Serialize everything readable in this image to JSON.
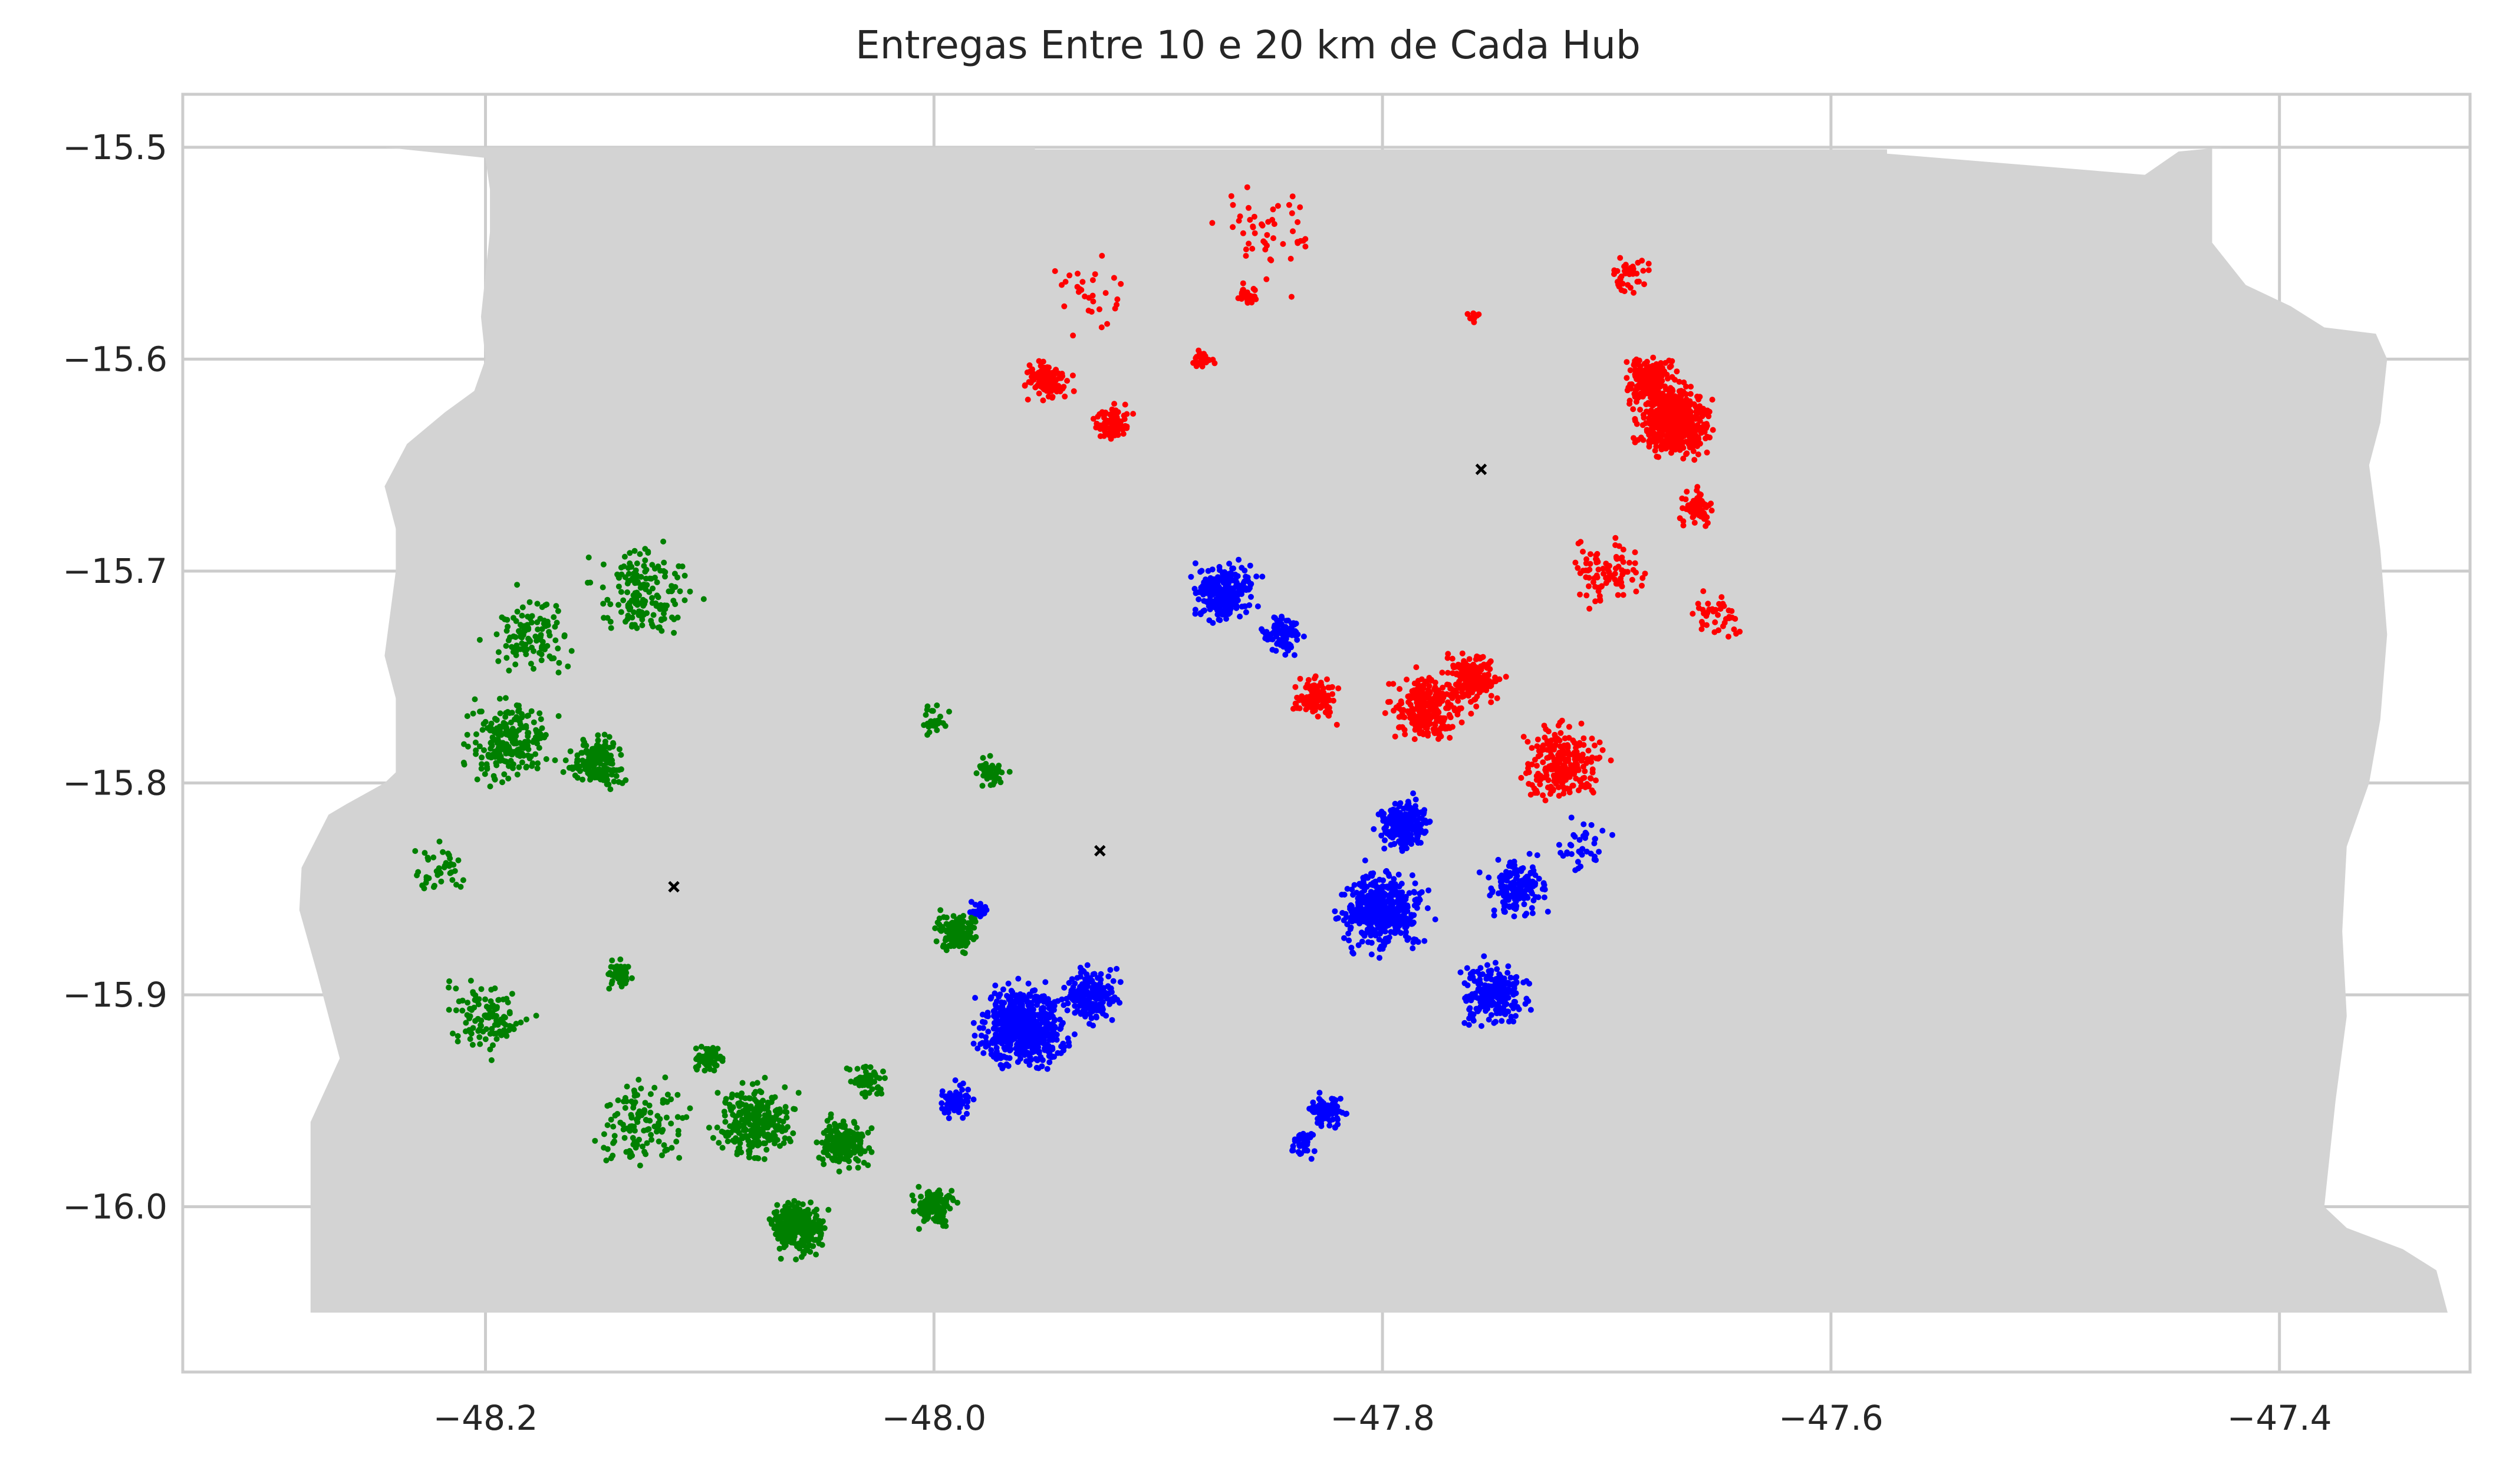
{
  "chart_data": {
    "type": "scatter",
    "title": "Entregas Entre 10 e 20 km de Cada Hub",
    "xlabel": "",
    "ylabel": "",
    "xlim": [
      -48.335,
      -47.315
    ],
    "ylim": [
      -16.078,
      -15.475
    ],
    "xticks": [
      -48.2,
      -48.0,
      -47.8,
      -47.6,
      -47.4
    ],
    "yticks": [
      -15.5,
      -15.6,
      -15.7,
      -15.8,
      -15.9,
      -16.0
    ],
    "xtick_labels": [
      "−48.2",
      "−48.0",
      "−47.8",
      "−47.6",
      "−47.4"
    ],
    "ytick_labels": [
      "−15.5",
      "−15.6",
      "−15.7",
      "−15.8",
      "−15.9",
      "−16.0"
    ],
    "grid": true,
    "background_map_color": "#d3d3d3",
    "series": [
      {
        "color": "#ff0000",
        "hub": [
          -47.756,
          -15.652
        ],
        "clusters": [
          {
            "x": -47.67,
            "y": -15.63,
            "r": 0.025,
            "n": 520
          },
          {
            "x": -47.68,
            "y": -15.61,
            "r": 0.02,
            "n": 180
          },
          {
            "x": -47.66,
            "y": -15.67,
            "r": 0.012,
            "n": 90
          },
          {
            "x": -47.78,
            "y": -15.765,
            "r": 0.025,
            "n": 260
          },
          {
            "x": -47.76,
            "y": -15.75,
            "r": 0.02,
            "n": 180
          },
          {
            "x": -47.72,
            "y": -15.79,
            "r": 0.03,
            "n": 240
          },
          {
            "x": -47.83,
            "y": -15.76,
            "r": 0.015,
            "n": 120
          },
          {
            "x": -47.95,
            "y": -15.61,
            "r": 0.015,
            "n": 110
          },
          {
            "x": -47.92,
            "y": -15.63,
            "r": 0.012,
            "n": 90
          },
          {
            "x": -47.86,
            "y": -15.57,
            "r": 0.008,
            "n": 30
          },
          {
            "x": -47.88,
            "y": -15.6,
            "r": 0.008,
            "n": 30
          },
          {
            "x": -47.69,
            "y": -15.56,
            "r": 0.018,
            "n": 40
          },
          {
            "x": -47.7,
            "y": -15.7,
            "r": 0.025,
            "n": 90
          },
          {
            "x": -47.65,
            "y": -15.72,
            "r": 0.022,
            "n": 40
          },
          {
            "x": -47.85,
            "y": -15.54,
            "r": 0.04,
            "n": 50
          },
          {
            "x": -47.93,
            "y": -15.57,
            "r": 0.03,
            "n": 30
          },
          {
            "x": -47.76,
            "y": -15.58,
            "r": 0.005,
            "n": 12
          }
        ]
      },
      {
        "color": "#0000ff",
        "hub": [
          -47.926,
          -15.832
        ],
        "clusters": [
          {
            "x": -47.96,
            "y": -15.915,
            "r": 0.03,
            "n": 620
          },
          {
            "x": -47.93,
            "y": -15.9,
            "r": 0.02,
            "n": 200
          },
          {
            "x": -47.87,
            "y": -15.71,
            "r": 0.022,
            "n": 240
          },
          {
            "x": -47.845,
            "y": -15.73,
            "r": 0.015,
            "n": 90
          },
          {
            "x": -47.8,
            "y": -15.86,
            "r": 0.03,
            "n": 450
          },
          {
            "x": -47.79,
            "y": -15.82,
            "r": 0.02,
            "n": 200
          },
          {
            "x": -47.75,
            "y": -15.9,
            "r": 0.025,
            "n": 220
          },
          {
            "x": -47.74,
            "y": -15.85,
            "r": 0.02,
            "n": 160
          },
          {
            "x": -47.825,
            "y": -15.955,
            "r": 0.012,
            "n": 90
          },
          {
            "x": -47.835,
            "y": -15.97,
            "r": 0.01,
            "n": 40
          },
          {
            "x": -47.99,
            "y": -15.95,
            "r": 0.015,
            "n": 60
          },
          {
            "x": -47.98,
            "y": -15.86,
            "r": 0.008,
            "n": 25
          },
          {
            "x": -47.71,
            "y": -15.83,
            "r": 0.02,
            "n": 40
          }
        ]
      },
      {
        "color": "#008000",
        "hub": [
          -48.116,
          -15.849
        ],
        "clusters": [
          {
            "x": -48.15,
            "y": -15.79,
            "r": 0.02,
            "n": 180
          },
          {
            "x": -48.19,
            "y": -15.78,
            "r": 0.03,
            "n": 220
          },
          {
            "x": -48.06,
            "y": -16.01,
            "r": 0.02,
            "n": 260
          },
          {
            "x": -48.04,
            "y": -15.97,
            "r": 0.018,
            "n": 200
          },
          {
            "x": -48.08,
            "y": -15.96,
            "r": 0.028,
            "n": 260
          },
          {
            "x": -48.0,
            "y": -16.0,
            "r": 0.015,
            "n": 130
          },
          {
            "x": -47.99,
            "y": -15.87,
            "r": 0.015,
            "n": 140
          },
          {
            "x": -48.14,
            "y": -15.89,
            "r": 0.01,
            "n": 60
          },
          {
            "x": -48.1,
            "y": -15.93,
            "r": 0.01,
            "n": 70
          },
          {
            "x": -48.13,
            "y": -15.71,
            "r": 0.035,
            "n": 160
          },
          {
            "x": -48.18,
            "y": -15.73,
            "r": 0.03,
            "n": 110
          },
          {
            "x": -48.2,
            "y": -15.91,
            "r": 0.03,
            "n": 110
          },
          {
            "x": -48.13,
            "y": -15.96,
            "r": 0.035,
            "n": 120
          },
          {
            "x": -47.975,
            "y": -15.795,
            "r": 0.012,
            "n": 50
          },
          {
            "x": -48.0,
            "y": -15.77,
            "r": 0.012,
            "n": 25
          },
          {
            "x": -48.22,
            "y": -15.84,
            "r": 0.02,
            "n": 40
          },
          {
            "x": -48.03,
            "y": -15.94,
            "r": 0.015,
            "n": 50
          }
        ]
      }
    ]
  }
}
